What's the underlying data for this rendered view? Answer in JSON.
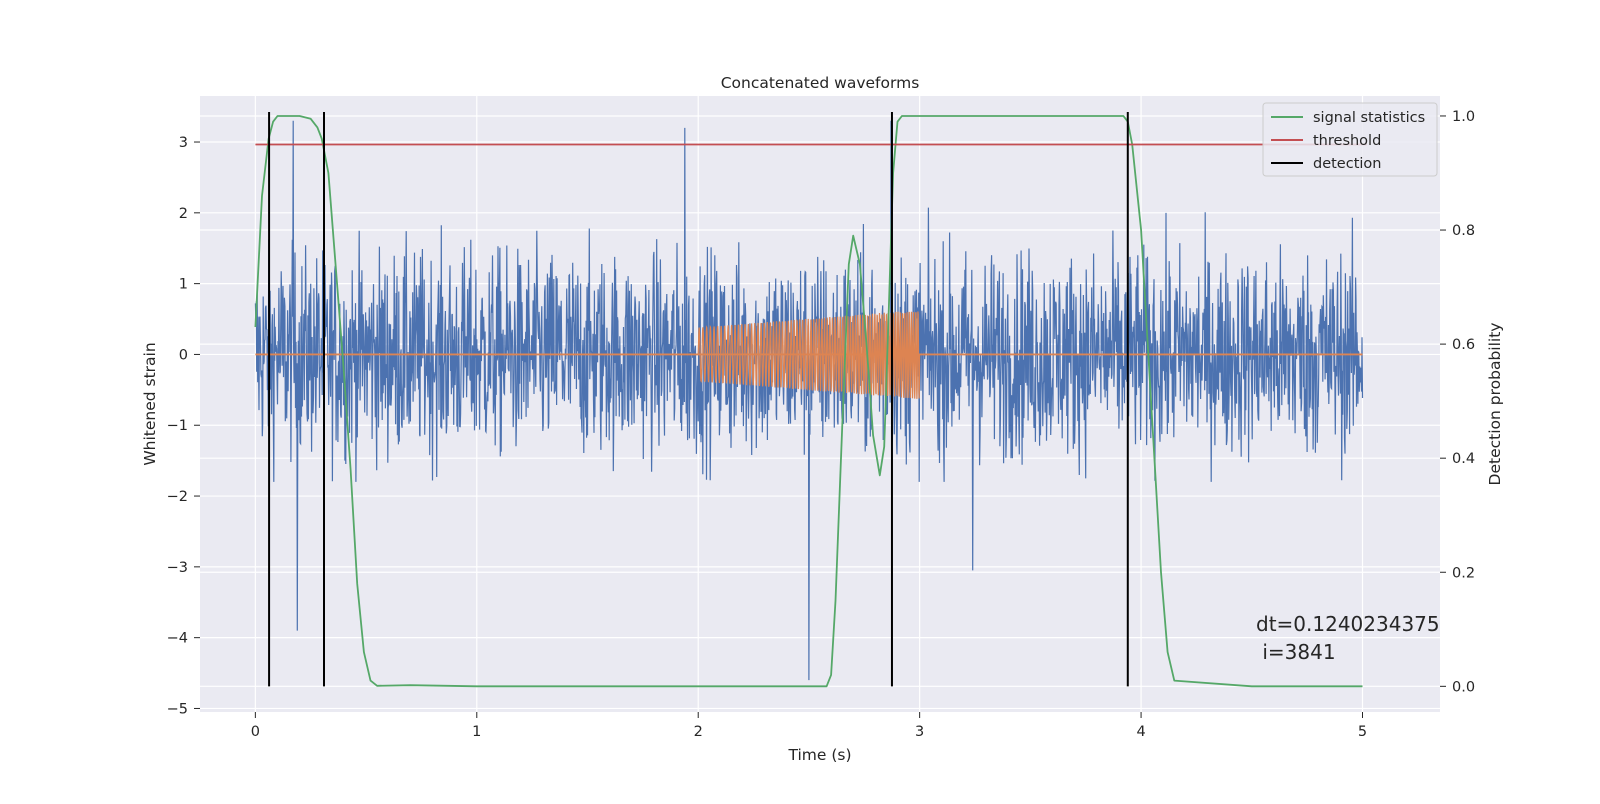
{
  "chart_data": {
    "type": "line",
    "title": "Concatenated waveforms",
    "xlabel": "Time (s)",
    "ylabel": "Whitened strain",
    "y2label": "Detection probability",
    "xlim": [
      -0.25,
      5.35
    ],
    "ylim": [
      -5.05,
      3.65
    ],
    "y2lim": [
      -0.045,
      1.035
    ],
    "xticks": [
      0,
      1,
      2,
      3,
      4,
      5
    ],
    "xtick_labels": [
      "0",
      "1",
      "2",
      "3",
      "4",
      "5"
    ],
    "yticks": [
      3,
      2,
      1,
      0,
      -1,
      -2,
      -3,
      -4,
      -5
    ],
    "ytick_labels": [
      "3",
      "2",
      "1",
      "0",
      "−1",
      "−2",
      "−3",
      "−4",
      "−5"
    ],
    "y2ticks": [
      1.0,
      0.8,
      0.6,
      0.4,
      0.2,
      0.0
    ],
    "y2tick_labels": [
      "1.0",
      "0.8",
      "0.6",
      "0.4",
      "0.2",
      "0.0"
    ],
    "grid": true,
    "legend_position": "top-right",
    "legend": [
      {
        "label": "signal statistics",
        "color": "#55a868"
      },
      {
        "label": "threshold",
        "color": "#c44e52"
      },
      {
        "label": "detection",
        "color": "#000000"
      }
    ],
    "annotation": {
      "lines": [
        "dt=0.1240234375",
        " i=3841"
      ]
    },
    "series": [
      {
        "axis": "left",
        "color": "#4c72b0",
        "kind": "noise",
        "x_range": [
          0,
          5
        ],
        "typical_range": [
          -1.8,
          2.3
        ],
        "extremes": [
          {
            "x": 0.17,
            "y": 3.3
          },
          {
            "x": 0.19,
            "y": -3.9
          },
          {
            "x": 1.94,
            "y": 3.2
          },
          {
            "x": 2.5,
            "y": -4.6
          },
          {
            "x": 2.87,
            "y": 3.3
          },
          {
            "x": 3.24,
            "y": -3.05
          }
        ]
      },
      {
        "axis": "left",
        "color": "#dd8452",
        "kind": "zero-line",
        "x": [
          0,
          5
        ],
        "y": [
          0,
          0
        ]
      },
      {
        "axis": "left",
        "color": "#dd8452",
        "kind": "chirp",
        "x_range": [
          2,
          3
        ],
        "amplitude_range": [
          0.38,
          0.63
        ]
      },
      {
        "name": "signal statistics",
        "axis": "right",
        "color": "#55a868",
        "x": [
          0.0,
          0.03,
          0.06,
          0.08,
          0.1,
          0.12,
          0.15,
          0.2,
          0.25,
          0.28,
          0.3,
          0.33,
          0.36,
          0.4,
          0.43,
          0.46,
          0.49,
          0.52,
          0.55,
          0.7,
          1.0,
          2.0,
          2.58,
          2.6,
          2.62,
          2.65,
          2.68,
          2.7,
          2.73,
          2.76,
          2.79,
          2.82,
          2.84,
          2.86,
          2.88,
          2.9,
          2.92,
          3.0,
          3.5,
          3.92,
          3.94,
          3.96,
          4.0,
          4.03,
          4.06,
          4.09,
          4.12,
          4.15,
          4.5,
          5.0
        ],
        "y": [
          0.63,
          0.86,
          0.96,
          0.99,
          1.0,
          1.0,
          1.0,
          1.0,
          0.995,
          0.98,
          0.96,
          0.9,
          0.75,
          0.55,
          0.38,
          0.18,
          0.06,
          0.01,
          0.001,
          0.002,
          0.0,
          0.0,
          0.0,
          0.02,
          0.15,
          0.45,
          0.74,
          0.79,
          0.74,
          0.6,
          0.44,
          0.37,
          0.42,
          0.65,
          0.9,
          0.99,
          1.0,
          1.0,
          1.0,
          1.0,
          0.99,
          0.95,
          0.8,
          0.6,
          0.4,
          0.2,
          0.06,
          0.01,
          0.0,
          0.0
        ]
      },
      {
        "name": "threshold",
        "axis": "right",
        "color": "#c44e52",
        "x": [
          0,
          5.02
        ],
        "y": [
          0.95,
          0.95
        ]
      },
      {
        "name": "detection",
        "axis": "right",
        "color": "#000000",
        "kind": "vlines",
        "x": [
          0.062,
          0.31,
          2.875,
          3.94
        ],
        "y_range": [
          0.0,
          1.0
        ]
      }
    ]
  }
}
